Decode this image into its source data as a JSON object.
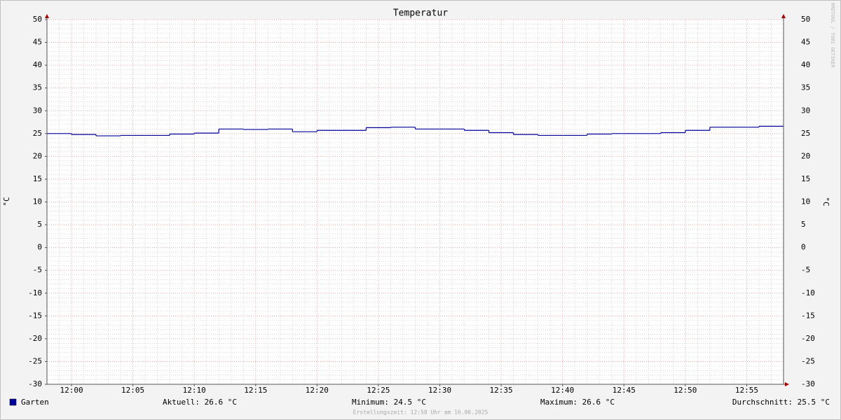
{
  "chart_data": {
    "type": "step",
    "title": "Temperatur",
    "y_label": "°C",
    "ylim": [
      -30,
      50
    ],
    "yticks": [
      -30,
      -25,
      -20,
      -15,
      -10,
      -5,
      0,
      5,
      10,
      15,
      20,
      25,
      30,
      35,
      40,
      45,
      50
    ],
    "xlim": [
      "11:58",
      "12:58"
    ],
    "xticks": [
      "12:00",
      "12:05",
      "12:10",
      "12:15",
      "12:20",
      "12:25",
      "12:30",
      "12:35",
      "12:40",
      "12:45",
      "12:50",
      "12:55"
    ],
    "grid": true,
    "series": [
      {
        "name": "Garten",
        "color": "#00009c",
        "x": [
          "11:58",
          "12:00",
          "12:02",
          "12:04",
          "12:06",
          "12:08",
          "12:10",
          "12:12",
          "12:14",
          "12:16",
          "12:18",
          "12:20",
          "12:22",
          "12:24",
          "12:26",
          "12:28",
          "12:30",
          "12:32",
          "12:34",
          "12:36",
          "12:38",
          "12:40",
          "12:42",
          "12:44",
          "12:46",
          "12:48",
          "12:50",
          "12:52",
          "12:54",
          "12:56"
        ],
        "values": [
          25.0,
          24.8,
          24.5,
          24.6,
          24.6,
          24.9,
          25.1,
          26.0,
          25.9,
          26.0,
          25.4,
          25.7,
          25.7,
          26.3,
          26.4,
          26.0,
          26.0,
          25.7,
          25.2,
          24.8,
          24.6,
          24.6,
          24.9,
          25.0,
          25.0,
          25.2,
          25.7,
          26.4,
          26.4,
          26.6
        ]
      }
    ],
    "legend_stats": [
      "Aktuell: 26.6 °C",
      "Minimum: 24.5 °C",
      "Maximum: 26.6 °C",
      "Durchschnitt: 25.5 °C"
    ],
    "footer": "Erstellungszeit: 12:58 Uhr am 16.06.2025",
    "watermark": "RRDTOOL / TOBI OETIKER"
  }
}
